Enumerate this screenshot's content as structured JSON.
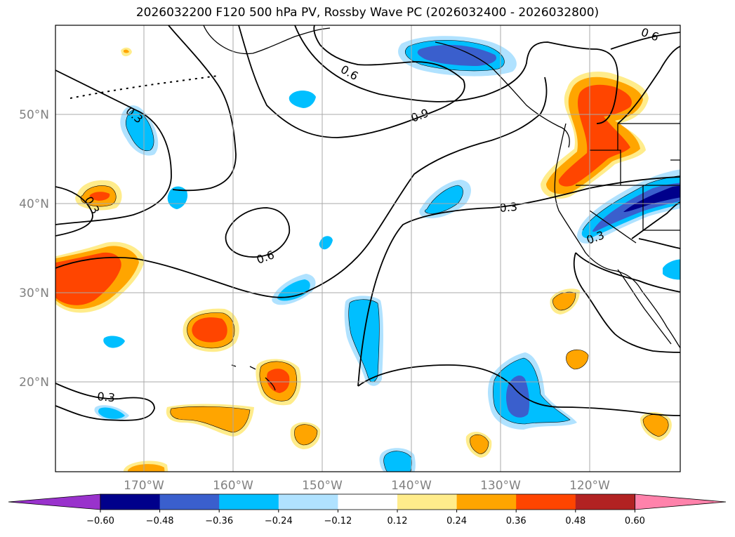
{
  "title": "2026032200 F120 500 hPa PV, Rossby Wave PC (2026032400 - 2026032800)",
  "lat_labels": [
    "50°N",
    "40°N",
    "30°N",
    "20°N"
  ],
  "lon_labels": [
    "170°W",
    "160°W",
    "150°W",
    "140°W",
    "130°W",
    "120°W"
  ],
  "contour_labels": [
    "0.6",
    "0.9",
    "0.3",
    "0.3",
    "0.6",
    "0.3",
    "0.3",
    "0.6",
    "0.3"
  ],
  "colorbar": {
    "ticks": [
      "−0.60",
      "−0.48",
      "−0.36",
      "−0.24",
      "−0.12",
      "0.12",
      "0.24",
      "0.36",
      "0.48",
      "0.60"
    ],
    "colors": [
      "#9932cc",
      "#00008b",
      "#3a5fcd",
      "#00bfff",
      "#b0e2ff",
      "#ffffff",
      "#ffec8b",
      "#ffa500",
      "#ff4500",
      "#b22222",
      "#ff82ab"
    ]
  },
  "palette": {
    "neg_strong": "#3a5fcd",
    "neg": "#00bfff",
    "neg_weak": "#b0e2ff",
    "pos_weak": "#ffec8b",
    "pos": "#ffa500",
    "pos_strong": "#ff4500"
  }
}
